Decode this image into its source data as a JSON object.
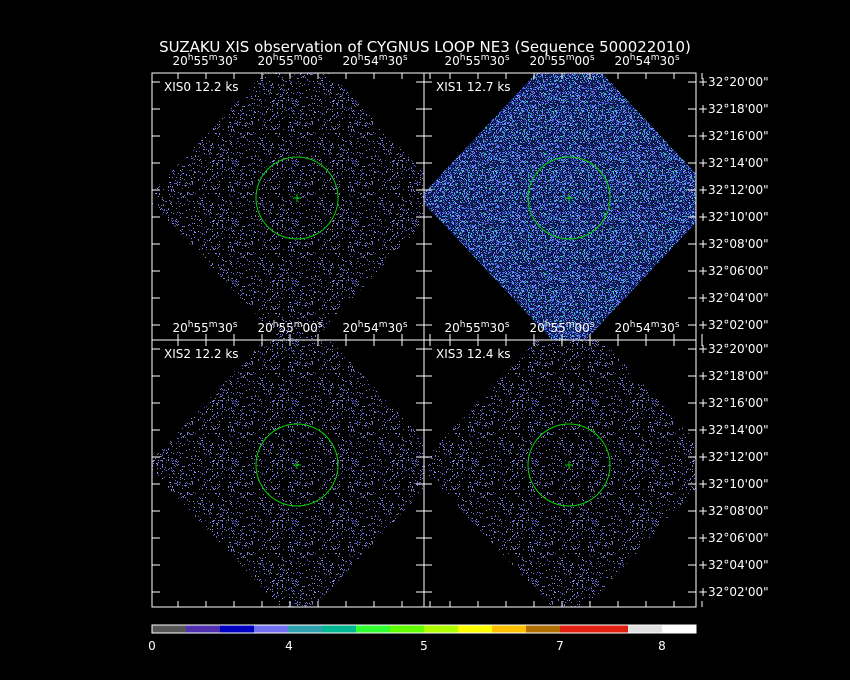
{
  "title": "SUZAKU XIS observation of CYGNUS LOOP NE3  (Sequence 500022010)",
  "panels": [
    {
      "label": "XIS0 12.2 ks"
    },
    {
      "label": "XIS1 12.7 ks"
    },
    {
      "label": "XIS2 12.2 ks"
    },
    {
      "label": "XIS3 12.4 ks"
    }
  ],
  "ra_labels": [
    [
      "20",
      "h",
      "55",
      "m",
      "30",
      "s"
    ],
    [
      "20",
      "h",
      "55",
      "m",
      "00",
      "s"
    ],
    [
      "20",
      "h",
      "54",
      "m",
      "30",
      "s"
    ]
  ],
  "dec_labels": [
    "+32°20'00\"",
    "+32°18'00\"",
    "+32°16'00\"",
    "+32°14'00\"",
    "+32°12'00\"",
    "+32°10'00\"",
    "+32°08'00\"",
    "+32°06'00\"",
    "+32°04'00\"",
    "+32°02'00\""
  ],
  "colorbar_labels": [
    "0",
    "4",
    "5",
    "7",
    "8"
  ]
}
